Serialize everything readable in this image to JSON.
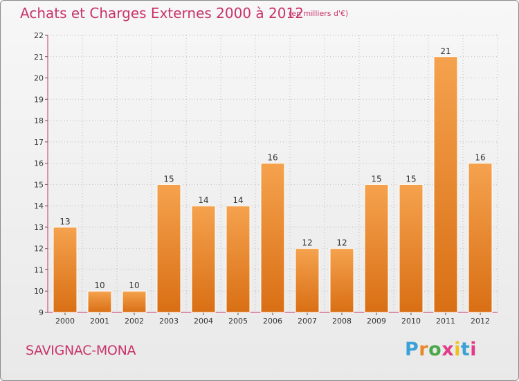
{
  "header": {
    "title": "Achats et Charges Externes 2000 à 2012",
    "subtitle": "(en milliers d'€)"
  },
  "footer": {
    "commune": "SAVIGNAC-MONA",
    "logo_text": "Proxiti",
    "logo_colors": [
      "#3aa0d8",
      "#e8892b",
      "#4aa84a",
      "#e23b85",
      "#f0c020",
      "#3aa0d8",
      "#e23b85"
    ]
  },
  "chart_data": {
    "type": "bar",
    "title": "Achats et Charges Externes 2000 à 2012",
    "subtitle": "(en milliers d'€)",
    "xlabel": "",
    "ylabel": "",
    "categories": [
      "2000",
      "2001",
      "2002",
      "2003",
      "2004",
      "2005",
      "2006",
      "2007",
      "2008",
      "2009",
      "2010",
      "2011",
      "2012"
    ],
    "values": [
      13,
      10,
      10,
      15,
      14,
      14,
      16,
      12,
      12,
      15,
      15,
      21,
      16
    ],
    "ylim": [
      9,
      22
    ],
    "yticks": [
      9,
      10,
      11,
      12,
      13,
      14,
      15,
      16,
      17,
      18,
      19,
      20,
      21,
      22
    ],
    "grid": true,
    "bar_color_light": "#f5a24e",
    "bar_color_dark": "#d96f14",
    "axis_color": "#c8336a"
  }
}
